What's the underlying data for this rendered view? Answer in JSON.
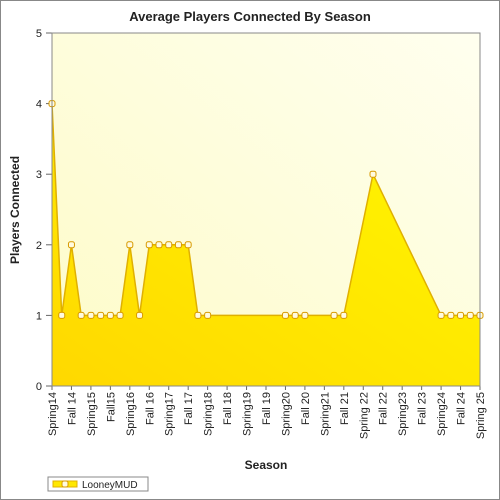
{
  "chart_data": {
    "type": "area",
    "title": "Average Players Connected By Season",
    "xlabel": "Season",
    "ylabel": "Players Connected",
    "xlim": [
      0,
      44
    ],
    "xticks": [
      {
        "value": 0,
        "label": "Spring14"
      },
      {
        "value": 2,
        "label": "Fall 14"
      },
      {
        "value": 4,
        "label": "Spring15"
      },
      {
        "value": 6,
        "label": "Fall15"
      },
      {
        "value": 8,
        "label": "Spring16"
      },
      {
        "value": 10,
        "label": "Fall 16"
      },
      {
        "value": 12,
        "label": "Spring17"
      },
      {
        "value": 14,
        "label": "Fall 17"
      },
      {
        "value": 16,
        "label": "Spring18"
      },
      {
        "value": 18,
        "label": "Fall 18"
      },
      {
        "value": 20,
        "label": "Spring19"
      },
      {
        "value": 22,
        "label": "Fall 19"
      },
      {
        "value": 24,
        "label": "Spring20"
      },
      {
        "value": 26,
        "label": "Fall 20"
      },
      {
        "value": 28,
        "label": "Spring21"
      },
      {
        "value": 30,
        "label": "Fall 21"
      },
      {
        "value": 32,
        "label": "Spring 22"
      },
      {
        "value": 34,
        "label": "Fall 22"
      },
      {
        "value": 36,
        "label": "Spring23"
      },
      {
        "value": 38,
        "label": "Fall 23"
      },
      {
        "value": 40,
        "label": "Spring24"
      },
      {
        "value": 42,
        "label": "Fall 24"
      },
      {
        "value": 44,
        "label": "Spring 25"
      }
    ],
    "ylim": [
      0,
      5
    ],
    "yticks": [
      0,
      1,
      2,
      3,
      4,
      5
    ],
    "legend": "bottom-left",
    "series": [
      {
        "name": "LooneyMUD",
        "color": "#ffe800",
        "line_color": "#e0b000",
        "x": [
          0,
          1,
          2,
          3,
          4,
          5,
          6,
          7,
          8,
          9,
          10,
          11,
          12,
          13,
          14,
          15,
          16,
          24,
          25,
          26,
          29,
          30,
          33,
          40,
          41,
          42,
          43,
          44
        ],
        "values": [
          4,
          1,
          2,
          1,
          1,
          1,
          1,
          1,
          2,
          1,
          2,
          2,
          2,
          2,
          2,
          1,
          1,
          1,
          1,
          1,
          1,
          1,
          3,
          1,
          1,
          1,
          1,
          1
        ]
      }
    ]
  }
}
